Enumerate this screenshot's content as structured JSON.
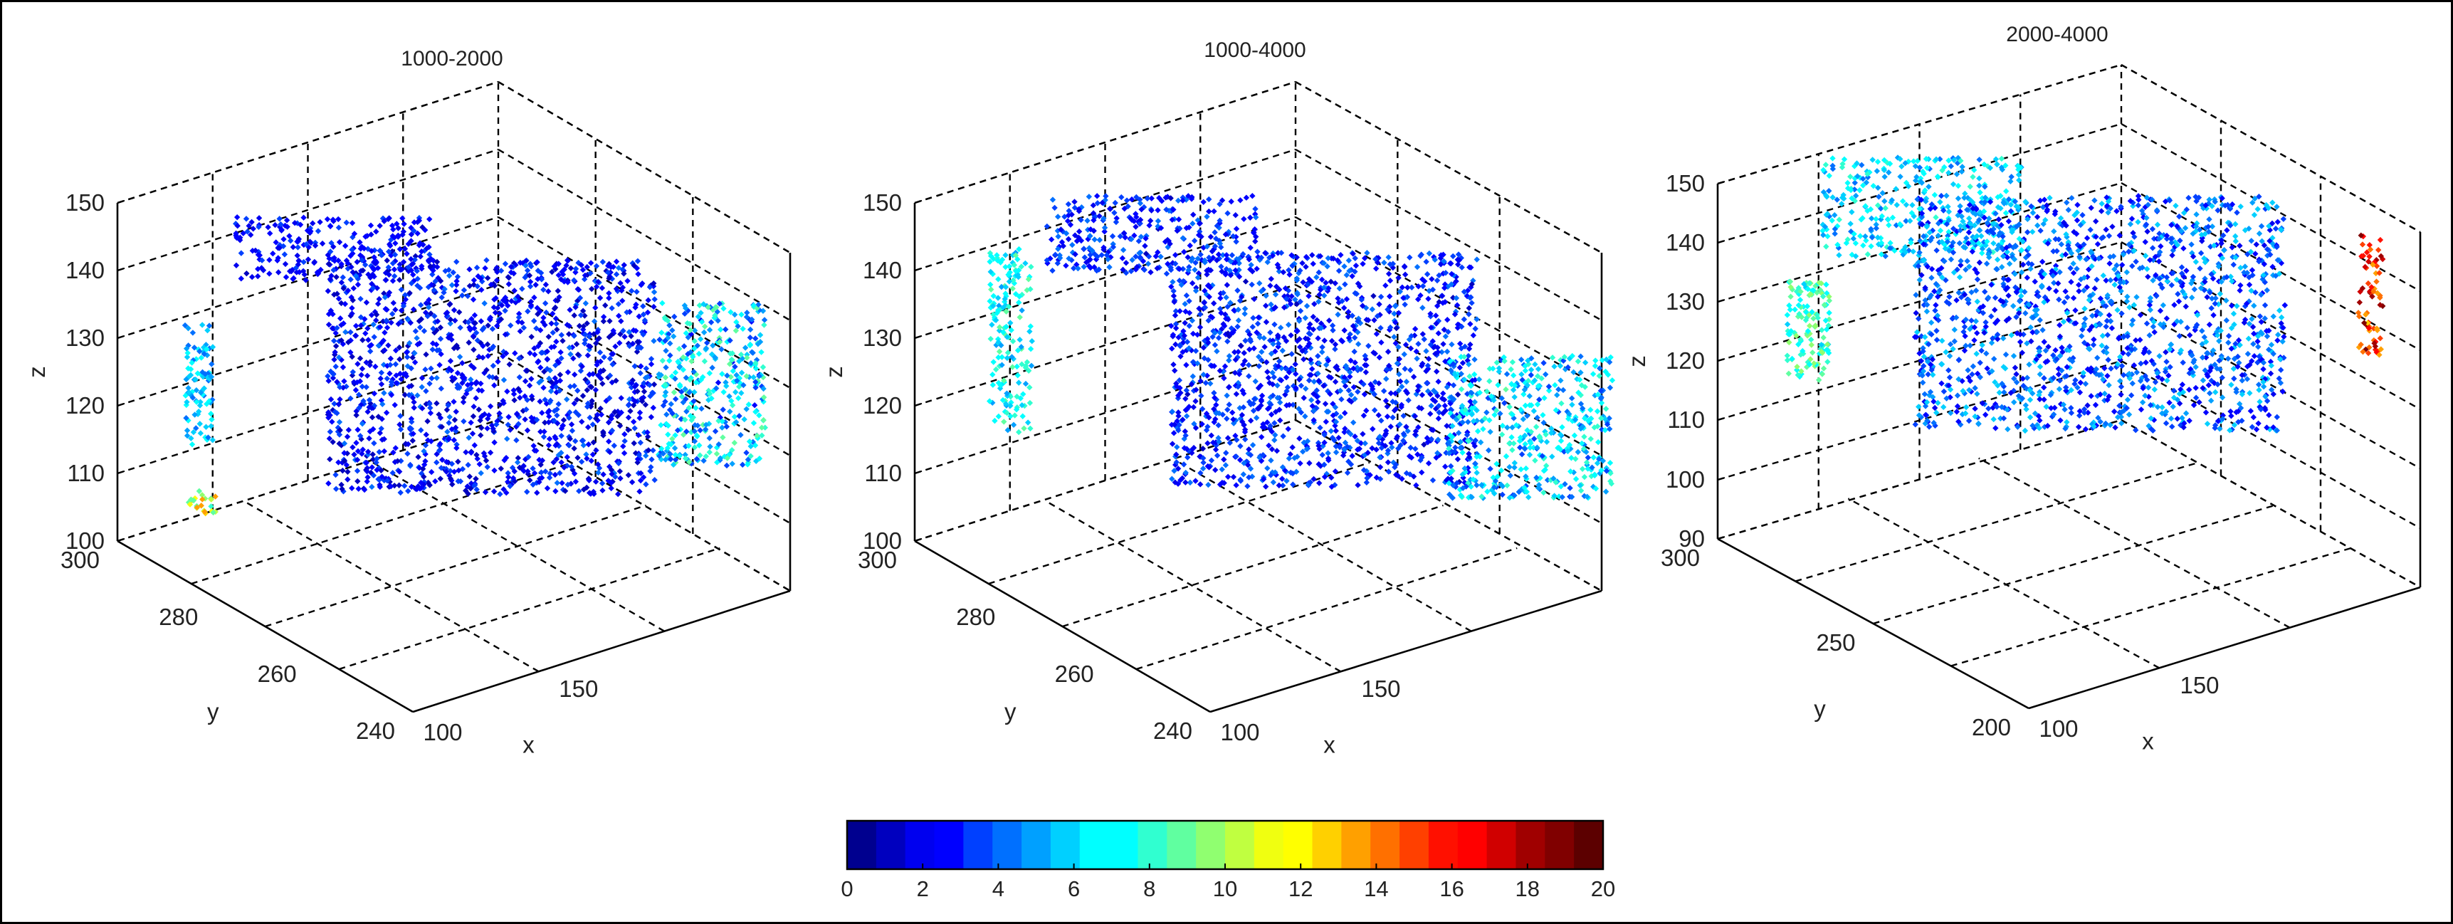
{
  "chart_data": [
    {
      "type": "scatter3d",
      "title": "1000-2000",
      "xlabel": "x",
      "ylabel": "y",
      "zlabel": "z",
      "x_ticks": [
        "100",
        "150"
      ],
      "y_ticks": [
        "240",
        "260",
        "280",
        "300"
      ],
      "z_ticks": [
        "100",
        "110",
        "120",
        "130",
        "140",
        "150"
      ],
      "color_scale": [
        0,
        20
      ],
      "clusters": [
        {
          "label": "roof arc",
          "color_value": 2.5
        },
        {
          "label": "left vertical strip",
          "color_value": 5.5
        },
        {
          "label": "low left blob",
          "color_value": 11
        },
        {
          "label": "main dense region",
          "color_value": 2.5
        },
        {
          "label": "right wall",
          "color_value": 6
        }
      ]
    },
    {
      "type": "scatter3d",
      "title": "1000-4000",
      "xlabel": "x",
      "ylabel": "y",
      "zlabel": "z",
      "x_ticks": [
        "100",
        "150"
      ],
      "y_ticks": [
        "260",
        "280",
        "300",
        "240"
      ],
      "z_ticks": [
        "100",
        "110",
        "120",
        "130",
        "140",
        "150"
      ],
      "color_scale": [
        0,
        20
      ],
      "clusters": [
        {
          "label": "left vertical strip",
          "color_value": 7
        },
        {
          "label": "roof arc",
          "color_value": 3
        },
        {
          "label": "main dense region",
          "color_value": 3
        },
        {
          "label": "right lower region",
          "color_value": 6
        }
      ]
    },
    {
      "type": "scatter3d",
      "title": "2000-4000",
      "xlabel": "x",
      "ylabel": "y",
      "zlabel": "z",
      "x_ticks": [
        "100",
        "150"
      ],
      "y_ticks": [
        "200",
        "250",
        "300"
      ],
      "z_ticks": [
        "90",
        "100",
        "110",
        "120",
        "130",
        "140",
        "150"
      ],
      "color_scale": [
        0,
        20
      ],
      "clusters": [
        {
          "label": "left vertical strip",
          "color_value": 8
        },
        {
          "label": "roof arc",
          "color_value": 6
        },
        {
          "label": "main dense region",
          "color_value": 4
        },
        {
          "label": "right hot strip",
          "color_value": 16
        }
      ]
    }
  ],
  "colorbar": {
    "min": 0,
    "max": 20,
    "ticks": [
      "0",
      "2",
      "4",
      "6",
      "8",
      "10",
      "12",
      "14",
      "16",
      "18",
      "20"
    ],
    "colors": [
      "#00008f",
      "#0000bf",
      "#0000ef",
      "#0000ff",
      "#0040ff",
      "#0070ff",
      "#00a0ff",
      "#00d0ff",
      "#00ffff",
      "#00ffff",
      "#30ffd0",
      "#60ffa0",
      "#90ff70",
      "#c0ff40",
      "#f0ff10",
      "#ffff00",
      "#ffd000",
      "#ffa000",
      "#ff7000",
      "#ff4000",
      "#ff1000",
      "#ff0000",
      "#d00000",
      "#a00000",
      "#800000",
      "#5c0000"
    ]
  }
}
